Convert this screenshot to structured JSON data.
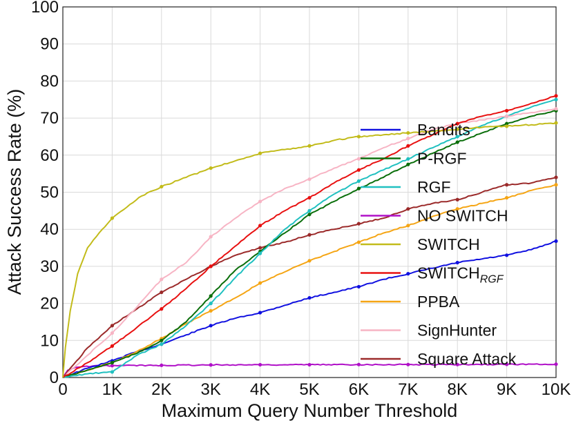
{
  "chart_data": {
    "type": "line",
    "title": "",
    "xlabel": "Maximum Query Number Threshold",
    "ylabel": "Attack Success Rate (%)",
    "xlim": [
      0,
      10000
    ],
    "ylim": [
      0,
      100
    ],
    "grid": true,
    "legend_position": "center-right",
    "xticks": [
      {
        "value": 0,
        "label": "0"
      },
      {
        "value": 1000,
        "label": "1K"
      },
      {
        "value": 2000,
        "label": "2K"
      },
      {
        "value": 3000,
        "label": "3K"
      },
      {
        "value": 4000,
        "label": "4K"
      },
      {
        "value": 5000,
        "label": "5K"
      },
      {
        "value": 6000,
        "label": "6K"
      },
      {
        "value": 7000,
        "label": "7K"
      },
      {
        "value": 8000,
        "label": "8K"
      },
      {
        "value": 9000,
        "label": "9K"
      },
      {
        "value": 10000,
        "label": "10K"
      }
    ],
    "yticks": [
      {
        "value": 0,
        "label": "0"
      },
      {
        "value": 10,
        "label": "10"
      },
      {
        "value": 20,
        "label": "20"
      },
      {
        "value": 30,
        "label": "30"
      },
      {
        "value": 40,
        "label": "40"
      },
      {
        "value": 50,
        "label": "50"
      },
      {
        "value": 60,
        "label": "60"
      },
      {
        "value": 70,
        "label": "70"
      },
      {
        "value": 80,
        "label": "80"
      },
      {
        "value": 90,
        "label": "90"
      },
      {
        "value": 100,
        "label": "100"
      }
    ],
    "series": [
      {
        "name": "Bandits",
        "label_main": "Bandits",
        "label_sub": "",
        "color": "#1010e0",
        "x": [
          0,
          500,
          1000,
          1500,
          2000,
          2500,
          3000,
          3500,
          4000,
          4500,
          5000,
          5500,
          6000,
          6500,
          7000,
          7500,
          8000,
          8500,
          9000,
          9500,
          10000
        ],
        "y": [
          0,
          2.5,
          4.5,
          7,
          9,
          11.5,
          14,
          16,
          17.5,
          19.5,
          21.5,
          23,
          24.5,
          26.5,
          28,
          29.5,
          31,
          32,
          33,
          34.5,
          36.8
        ]
      },
      {
        "name": "P-RGF",
        "label_main": "P-RGF",
        "label_sub": "",
        "color": "#0a6e0a",
        "x": [
          0,
          500,
          1000,
          1500,
          2000,
          2500,
          3000,
          3500,
          4000,
          4500,
          5000,
          5500,
          6000,
          6500,
          7000,
          7500,
          8000,
          8500,
          9000,
          9500,
          10000
        ],
        "y": [
          0,
          2,
          4,
          6.5,
          10,
          15,
          22,
          29,
          34,
          39,
          44,
          47.5,
          51,
          54,
          57.5,
          60.5,
          63.5,
          66,
          68.5,
          70.5,
          72
        ]
      },
      {
        "name": "RGF",
        "label_main": "RGF",
        "label_sub": "",
        "color": "#20c0c0",
        "x": [
          0,
          500,
          1000,
          1500,
          2000,
          2500,
          3000,
          3500,
          4000,
          4500,
          5000,
          5500,
          6000,
          6500,
          7000,
          7500,
          8000,
          8500,
          9000,
          9500,
          10000
        ],
        "y": [
          0,
          1,
          1.5,
          6,
          9,
          14,
          20,
          27,
          33.5,
          40,
          45,
          49.5,
          53,
          56,
          59,
          62,
          65,
          68,
          70.5,
          73,
          75
        ]
      },
      {
        "name": "NO SWITCH",
        "label_main": "NO SWITCH",
        "label_sub": "",
        "color": "#b010c8",
        "x": [
          0,
          100,
          300,
          600,
          1000,
          2000,
          3000,
          4000,
          5000,
          6000,
          7000,
          8000,
          9000,
          10000
        ],
        "y": [
          0,
          2,
          2.8,
          3.1,
          3.2,
          3.3,
          3.4,
          3.45,
          3.45,
          3.5,
          3.5,
          3.5,
          3.55,
          3.6
        ]
      },
      {
        "name": "SWITCH",
        "label_main": "SWITCH",
        "label_sub": "",
        "color": "#c2bb1a",
        "x": [
          0,
          50,
          150,
          300,
          500,
          800,
          1000,
          1300,
          1600,
          2000,
          2500,
          3000,
          3500,
          4000,
          4500,
          5000,
          5500,
          6000,
          6500,
          7000,
          7500,
          8000,
          8500,
          9000,
          9500,
          10000
        ],
        "y": [
          0,
          8,
          18,
          28,
          35,
          40,
          43,
          46,
          49,
          51.5,
          54,
          56.5,
          58.5,
          60.5,
          61.5,
          62.5,
          64,
          65,
          65.5,
          66,
          66.5,
          67,
          67.5,
          67.8,
          68.2,
          68.7
        ]
      },
      {
        "name": "SWITCH_RGF",
        "label_main": "SWITCH",
        "label_sub": "RGF",
        "color": "#e81010",
        "x": [
          0,
          500,
          1000,
          1500,
          2000,
          2500,
          3000,
          3500,
          4000,
          4500,
          5000,
          5500,
          6000,
          6500,
          7000,
          7500,
          8000,
          8500,
          9000,
          9500,
          10000
        ],
        "y": [
          0,
          4,
          8.5,
          13.5,
          18.5,
          24,
          30,
          35.5,
          41,
          45,
          48.5,
          52.5,
          56,
          59,
          62.5,
          65.5,
          68.5,
          70.5,
          72,
          74,
          76
        ]
      },
      {
        "name": "PPBA",
        "label_main": "PPBA",
        "label_sub": "",
        "color": "#f5a514",
        "x": [
          0,
          500,
          1000,
          1500,
          2000,
          2500,
          3000,
          3500,
          4000,
          4500,
          5000,
          5500,
          6000,
          6500,
          7000,
          7500,
          8000,
          8500,
          9000,
          9500,
          10000
        ],
        "y": [
          0,
          2,
          4,
          7,
          10.5,
          14.5,
          18,
          21.5,
          25.5,
          28.5,
          31.5,
          34,
          36.5,
          39,
          41,
          43.5,
          45.5,
          47,
          48.5,
          50.5,
          52
        ]
      },
      {
        "name": "SignHunter",
        "label_main": "SignHunter",
        "label_sub": "",
        "color": "#f7b4c4",
        "x": [
          0,
          500,
          1000,
          1500,
          2000,
          2500,
          3000,
          3500,
          4000,
          4500,
          5000,
          5500,
          6000,
          6500,
          7000,
          7500,
          8000,
          8500,
          9000,
          9500,
          10000
        ],
        "y": [
          0,
          6,
          12,
          19,
          26.5,
          31,
          38,
          43,
          47.5,
          51,
          53.5,
          56.5,
          59,
          62,
          64.5,
          67,
          68.5,
          69.5,
          70.5,
          71.5,
          72.5
        ]
      },
      {
        "name": "Square Attack",
        "label_main": "Square Attack",
        "label_sub": "",
        "color": "#9b2a2a",
        "x": [
          0,
          500,
          1000,
          1500,
          2000,
          2500,
          3000,
          3500,
          4000,
          4500,
          5000,
          5500,
          6000,
          6500,
          7000,
          7500,
          8000,
          8500,
          9000,
          9500,
          10000
        ],
        "y": [
          0,
          8,
          14,
          18.5,
          23,
          26.5,
          30,
          33,
          35,
          36.5,
          38.5,
          40,
          41.5,
          43,
          45.5,
          47,
          48,
          50,
          52,
          52.5,
          54
        ]
      }
    ]
  }
}
